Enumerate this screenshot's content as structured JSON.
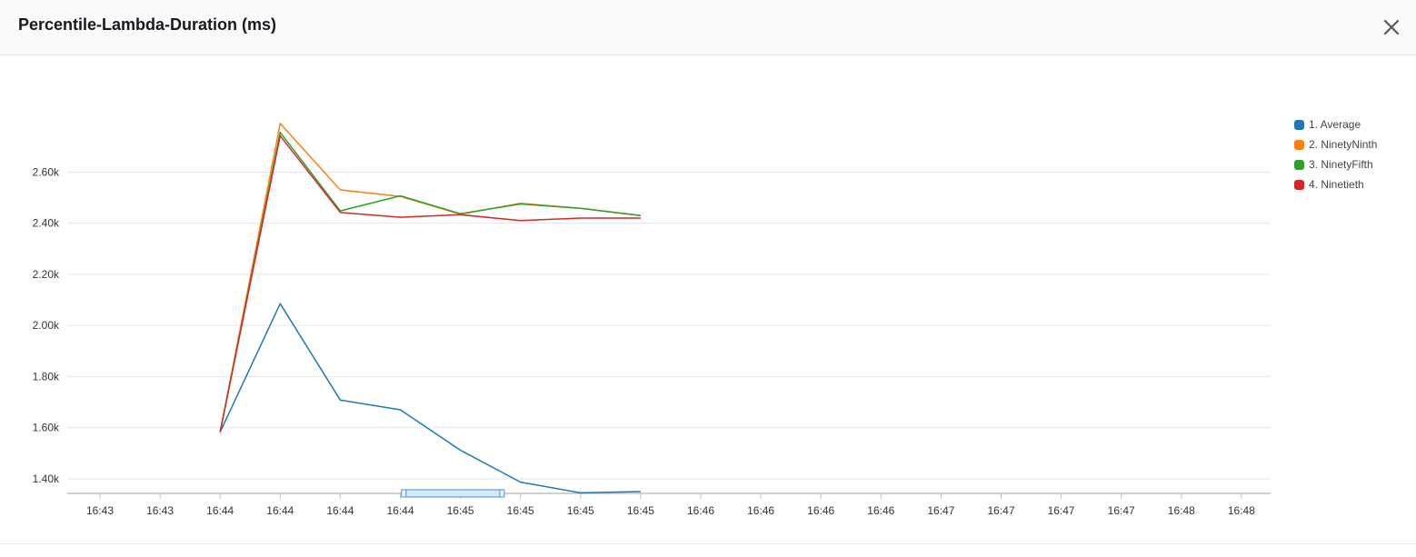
{
  "header": {
    "title": "Percentile-Lambda-Duration (ms)"
  },
  "icons": {
    "close": "close-icon"
  },
  "colors": {
    "grid": "#e6e6e6",
    "axis": "#c0c0c0",
    "nav_fill": "#d6e9fb",
    "nav_stroke": "#4a90d9"
  },
  "chart_data": {
    "type": "line",
    "title": "Percentile-Lambda-Duration (ms)",
    "x_tick_labels": [
      "16:43",
      "16:43",
      "16:44",
      "16:44",
      "16:44",
      "16:44",
      "16:45",
      "16:45",
      "16:45",
      "16:45",
      "16:46",
      "16:46",
      "16:46",
      "16:46",
      "16:47",
      "16:47",
      "16:47",
      "16:47",
      "16:48",
      "16:48"
    ],
    "y_ticks": [
      1400,
      1600,
      1800,
      2000,
      2200,
      2400,
      2600
    ],
    "y_tick_labels": [
      "1.40k",
      "1.60k",
      "1.80k",
      "2.00k",
      "2.20k",
      "2.40k",
      "2.60k"
    ],
    "ylim": [
      1343,
      2850
    ],
    "grid": true,
    "legend_position": "right",
    "x_index_offset": 2,
    "series": [
      {
        "name": "1. Average",
        "color": "#1f77b4",
        "values": [
          1583,
          2085,
          1708,
          1670,
          1512,
          1387,
          1345,
          1350
        ]
      },
      {
        "name": "2. NinetyNinth",
        "color": "#ff7f0e",
        "values": [
          1583,
          2790,
          2530,
          2505,
          2435,
          2478,
          2458,
          2430
        ]
      },
      {
        "name": "3. NinetyFifth",
        "color": "#2ca02c",
        "values": [
          1583,
          2755,
          2448,
          2507,
          2437,
          2475,
          2458,
          2430
        ]
      },
      {
        "name": "4. Ninetieth",
        "color": "#d62728",
        "values": [
          1583,
          2742,
          2442,
          2423,
          2433,
          2410,
          2420,
          2420
        ]
      }
    ],
    "navigator": {
      "range_start_index": 5.05,
      "range_end_index": 6.7
    }
  }
}
